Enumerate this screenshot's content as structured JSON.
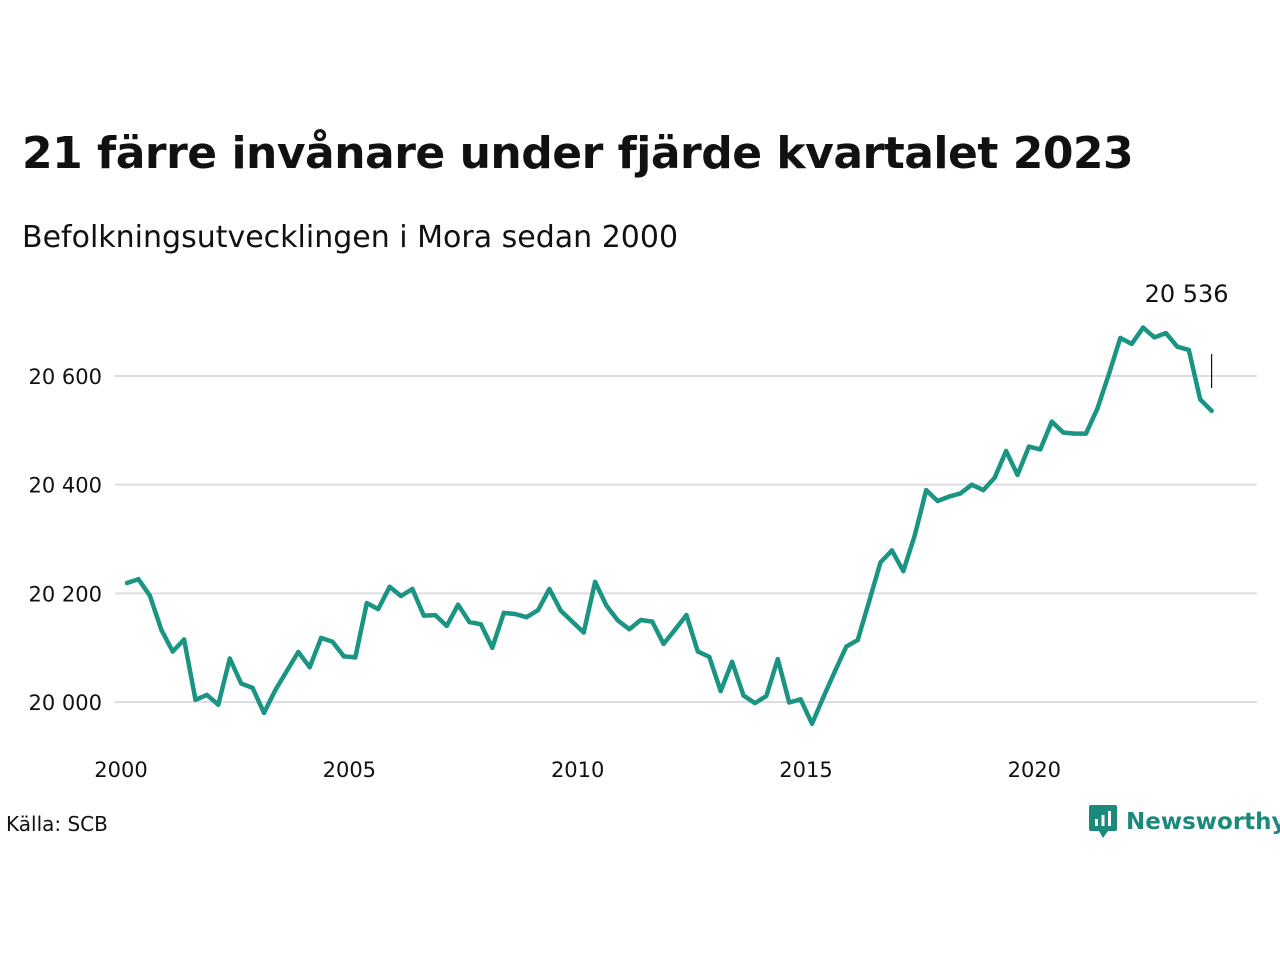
{
  "page": {
    "source_label": "Källa: SCB",
    "brand_name": "Newsworthy"
  },
  "colors": {
    "line": "#1a9483",
    "grid": "#dcdde3",
    "text": "#111111",
    "brand": "#1b8a7c"
  },
  "chart_data": {
    "type": "line",
    "title": "21 färre invånare under fjärde kvartalet 2023",
    "subtitle": "Befolkningsutvecklingen i Mora sedan 2000",
    "xlabel": "",
    "ylabel": "",
    "xlim": [
      2000,
      2024
    ],
    "ylim": [
      19920,
      20700
    ],
    "x_ticks": [
      {
        "value": 2000,
        "label": "2000"
      },
      {
        "value": 2005,
        "label": "2005"
      },
      {
        "value": 2010,
        "label": "2010"
      },
      {
        "value": 2015,
        "label": "2015"
      },
      {
        "value": 2020,
        "label": "2020"
      }
    ],
    "y_ticks": [
      {
        "value": 20000,
        "label": "20 000"
      },
      {
        "value": 20200,
        "label": "20 200"
      },
      {
        "value": 20400,
        "label": "20 400"
      },
      {
        "value": 20600,
        "label": "20 600"
      }
    ],
    "grid": true,
    "legend": "none",
    "end_label": "20 536",
    "series": [
      {
        "values": [
          [
            2000.0,
            20219
          ],
          [
            2000.25,
            20226
          ],
          [
            2000.5,
            20196
          ],
          [
            2000.75,
            20133
          ],
          [
            2001.0,
            20093
          ],
          [
            2001.25,
            20115
          ],
          [
            2001.5,
            20004
          ],
          [
            2001.75,
            20013
          ],
          [
            2002.0,
            19995
          ],
          [
            2002.25,
            20080
          ],
          [
            2002.5,
            20034
          ],
          [
            2002.75,
            20026
          ],
          [
            2003.0,
            19980
          ],
          [
            2003.25,
            20022
          ],
          [
            2003.5,
            20057
          ],
          [
            2003.75,
            20092
          ],
          [
            2004.0,
            20064
          ],
          [
            2004.25,
            20118
          ],
          [
            2004.5,
            20111
          ],
          [
            2004.75,
            20084
          ],
          [
            2005.0,
            20082
          ],
          [
            2005.25,
            20182
          ],
          [
            2005.5,
            20171
          ],
          [
            2005.75,
            20212
          ],
          [
            2006.0,
            20195
          ],
          [
            2006.25,
            20208
          ],
          [
            2006.5,
            20159
          ],
          [
            2006.75,
            20160
          ],
          [
            2007.0,
            20140
          ],
          [
            2007.25,
            20179
          ],
          [
            2007.5,
            20147
          ],
          [
            2007.75,
            20143
          ],
          [
            2008.0,
            20100
          ],
          [
            2008.25,
            20164
          ],
          [
            2008.5,
            20162
          ],
          [
            2008.75,
            20156
          ],
          [
            2009.0,
            20169
          ],
          [
            2009.25,
            20208
          ],
          [
            2009.5,
            20168
          ],
          [
            2009.75,
            20148
          ],
          [
            2010.0,
            20128
          ],
          [
            2010.25,
            20221
          ],
          [
            2010.5,
            20177
          ],
          [
            2010.75,
            20150
          ],
          [
            2011.0,
            20134
          ],
          [
            2011.25,
            20151
          ],
          [
            2011.5,
            20148
          ],
          [
            2011.75,
            20107
          ],
          [
            2012.0,
            20133
          ],
          [
            2012.25,
            20160
          ],
          [
            2012.5,
            20093
          ],
          [
            2012.75,
            20083
          ],
          [
            2013.0,
            20020
          ],
          [
            2013.25,
            20074
          ],
          [
            2013.5,
            20012
          ],
          [
            2013.75,
            19998
          ],
          [
            2014.0,
            20011
          ],
          [
            2014.25,
            20079
          ],
          [
            2014.5,
            19999
          ],
          [
            2014.75,
            20005
          ],
          [
            2015.0,
            19960
          ],
          [
            2015.25,
            20009
          ],
          [
            2015.5,
            20056
          ],
          [
            2015.75,
            20102
          ],
          [
            2016.0,
            20114
          ],
          [
            2016.25,
            20185
          ],
          [
            2016.5,
            20257
          ],
          [
            2016.75,
            20279
          ],
          [
            2017.0,
            20241
          ],
          [
            2017.25,
            20307
          ],
          [
            2017.5,
            20390
          ],
          [
            2017.75,
            20370
          ],
          [
            2018.0,
            20378
          ],
          [
            2018.25,
            20384
          ],
          [
            2018.5,
            20400
          ],
          [
            2018.75,
            20390
          ],
          [
            2019.0,
            20413
          ],
          [
            2019.25,
            20462
          ],
          [
            2019.5,
            20418
          ],
          [
            2019.75,
            20470
          ],
          [
            2020.0,
            20465
          ],
          [
            2020.25,
            20516
          ],
          [
            2020.5,
            20496
          ],
          [
            2020.75,
            20494
          ],
          [
            2021.0,
            20494
          ],
          [
            2021.25,
            20540
          ],
          [
            2021.5,
            20603
          ],
          [
            2021.75,
            20670
          ],
          [
            2022.0,
            20659
          ],
          [
            2022.25,
            20689
          ],
          [
            2022.5,
            20671
          ],
          [
            2022.75,
            20679
          ],
          [
            2023.0,
            20654
          ],
          [
            2023.25,
            20648
          ],
          [
            2023.5,
            20557
          ],
          [
            2023.75,
            20536
          ]
        ]
      }
    ]
  }
}
